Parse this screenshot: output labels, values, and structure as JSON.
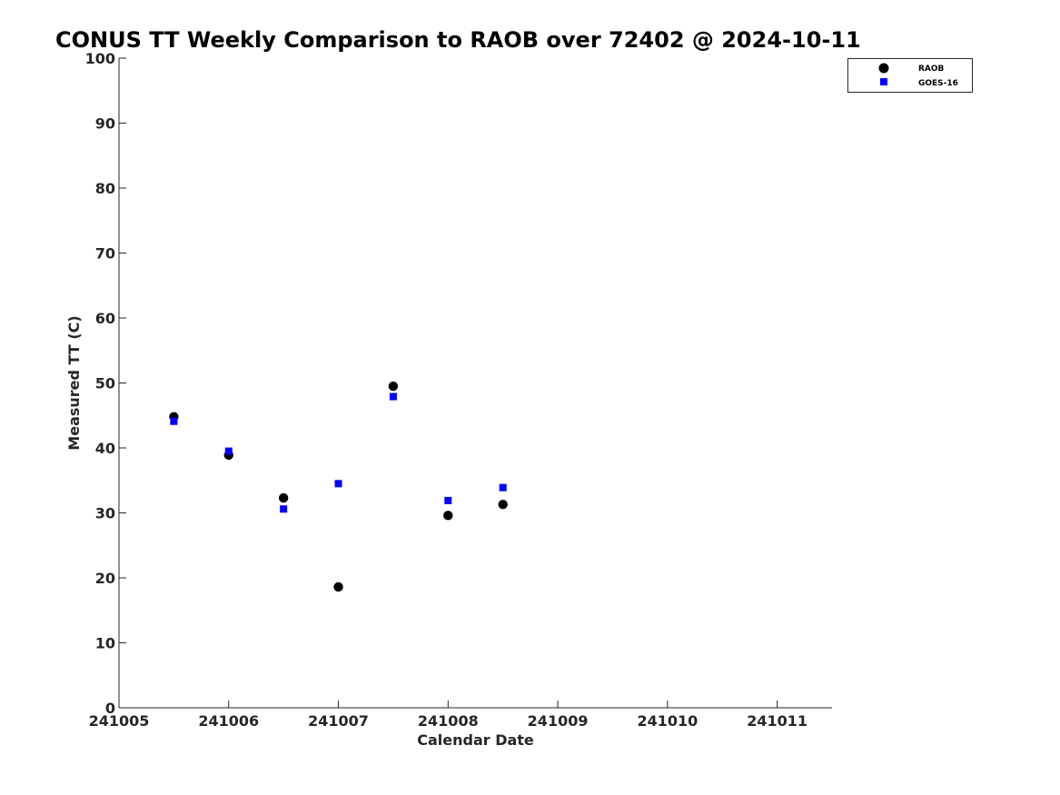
{
  "chart_data": {
    "type": "scatter",
    "title": "CONUS TT Weekly Comparison to RAOB over 72402 @ 2024-10-11",
    "xlabel": "Calendar Date",
    "ylabel": "Measured TT (C)",
    "x_tick_labels": [
      "241005",
      "241006",
      "241007",
      "241008",
      "241009",
      "241010",
      "241011"
    ],
    "xlim": [
      "2024-10-05",
      "2024-10-11T12:00"
    ],
    "ylim": [
      0,
      100
    ],
    "y_ticks": [
      0,
      10,
      20,
      30,
      40,
      50,
      60,
      70,
      80,
      90,
      100
    ],
    "grid": false,
    "legend_position": "top-right",
    "series": [
      {
        "name": "RAOB",
        "marker": "circle",
        "color": "#000000",
        "points": [
          {
            "x": "2024-10-05T12:00",
            "y": 44.8
          },
          {
            "x": "2024-10-06T00:00",
            "y": 38.9
          },
          {
            "x": "2024-10-06T12:00",
            "y": 32.3
          },
          {
            "x": "2024-10-07T00:00",
            "y": 18.6
          },
          {
            "x": "2024-10-07T12:00",
            "y": 49.5
          },
          {
            "x": "2024-10-08T00:00",
            "y": 29.6
          },
          {
            "x": "2024-10-08T12:00",
            "y": 31.3
          }
        ]
      },
      {
        "name": "GOES-16",
        "marker": "square",
        "color": "#0000ff",
        "points": [
          {
            "x": "2024-10-05T12:00",
            "y": 44.1
          },
          {
            "x": "2024-10-06T00:00",
            "y": 39.5
          },
          {
            "x": "2024-10-06T12:00",
            "y": 30.6
          },
          {
            "x": "2024-10-07T00:00",
            "y": 34.5
          },
          {
            "x": "2024-10-07T12:00",
            "y": 47.9
          },
          {
            "x": "2024-10-08T00:00",
            "y": 31.9
          },
          {
            "x": "2024-10-08T12:00",
            "y": 33.9
          }
        ]
      }
    ]
  }
}
